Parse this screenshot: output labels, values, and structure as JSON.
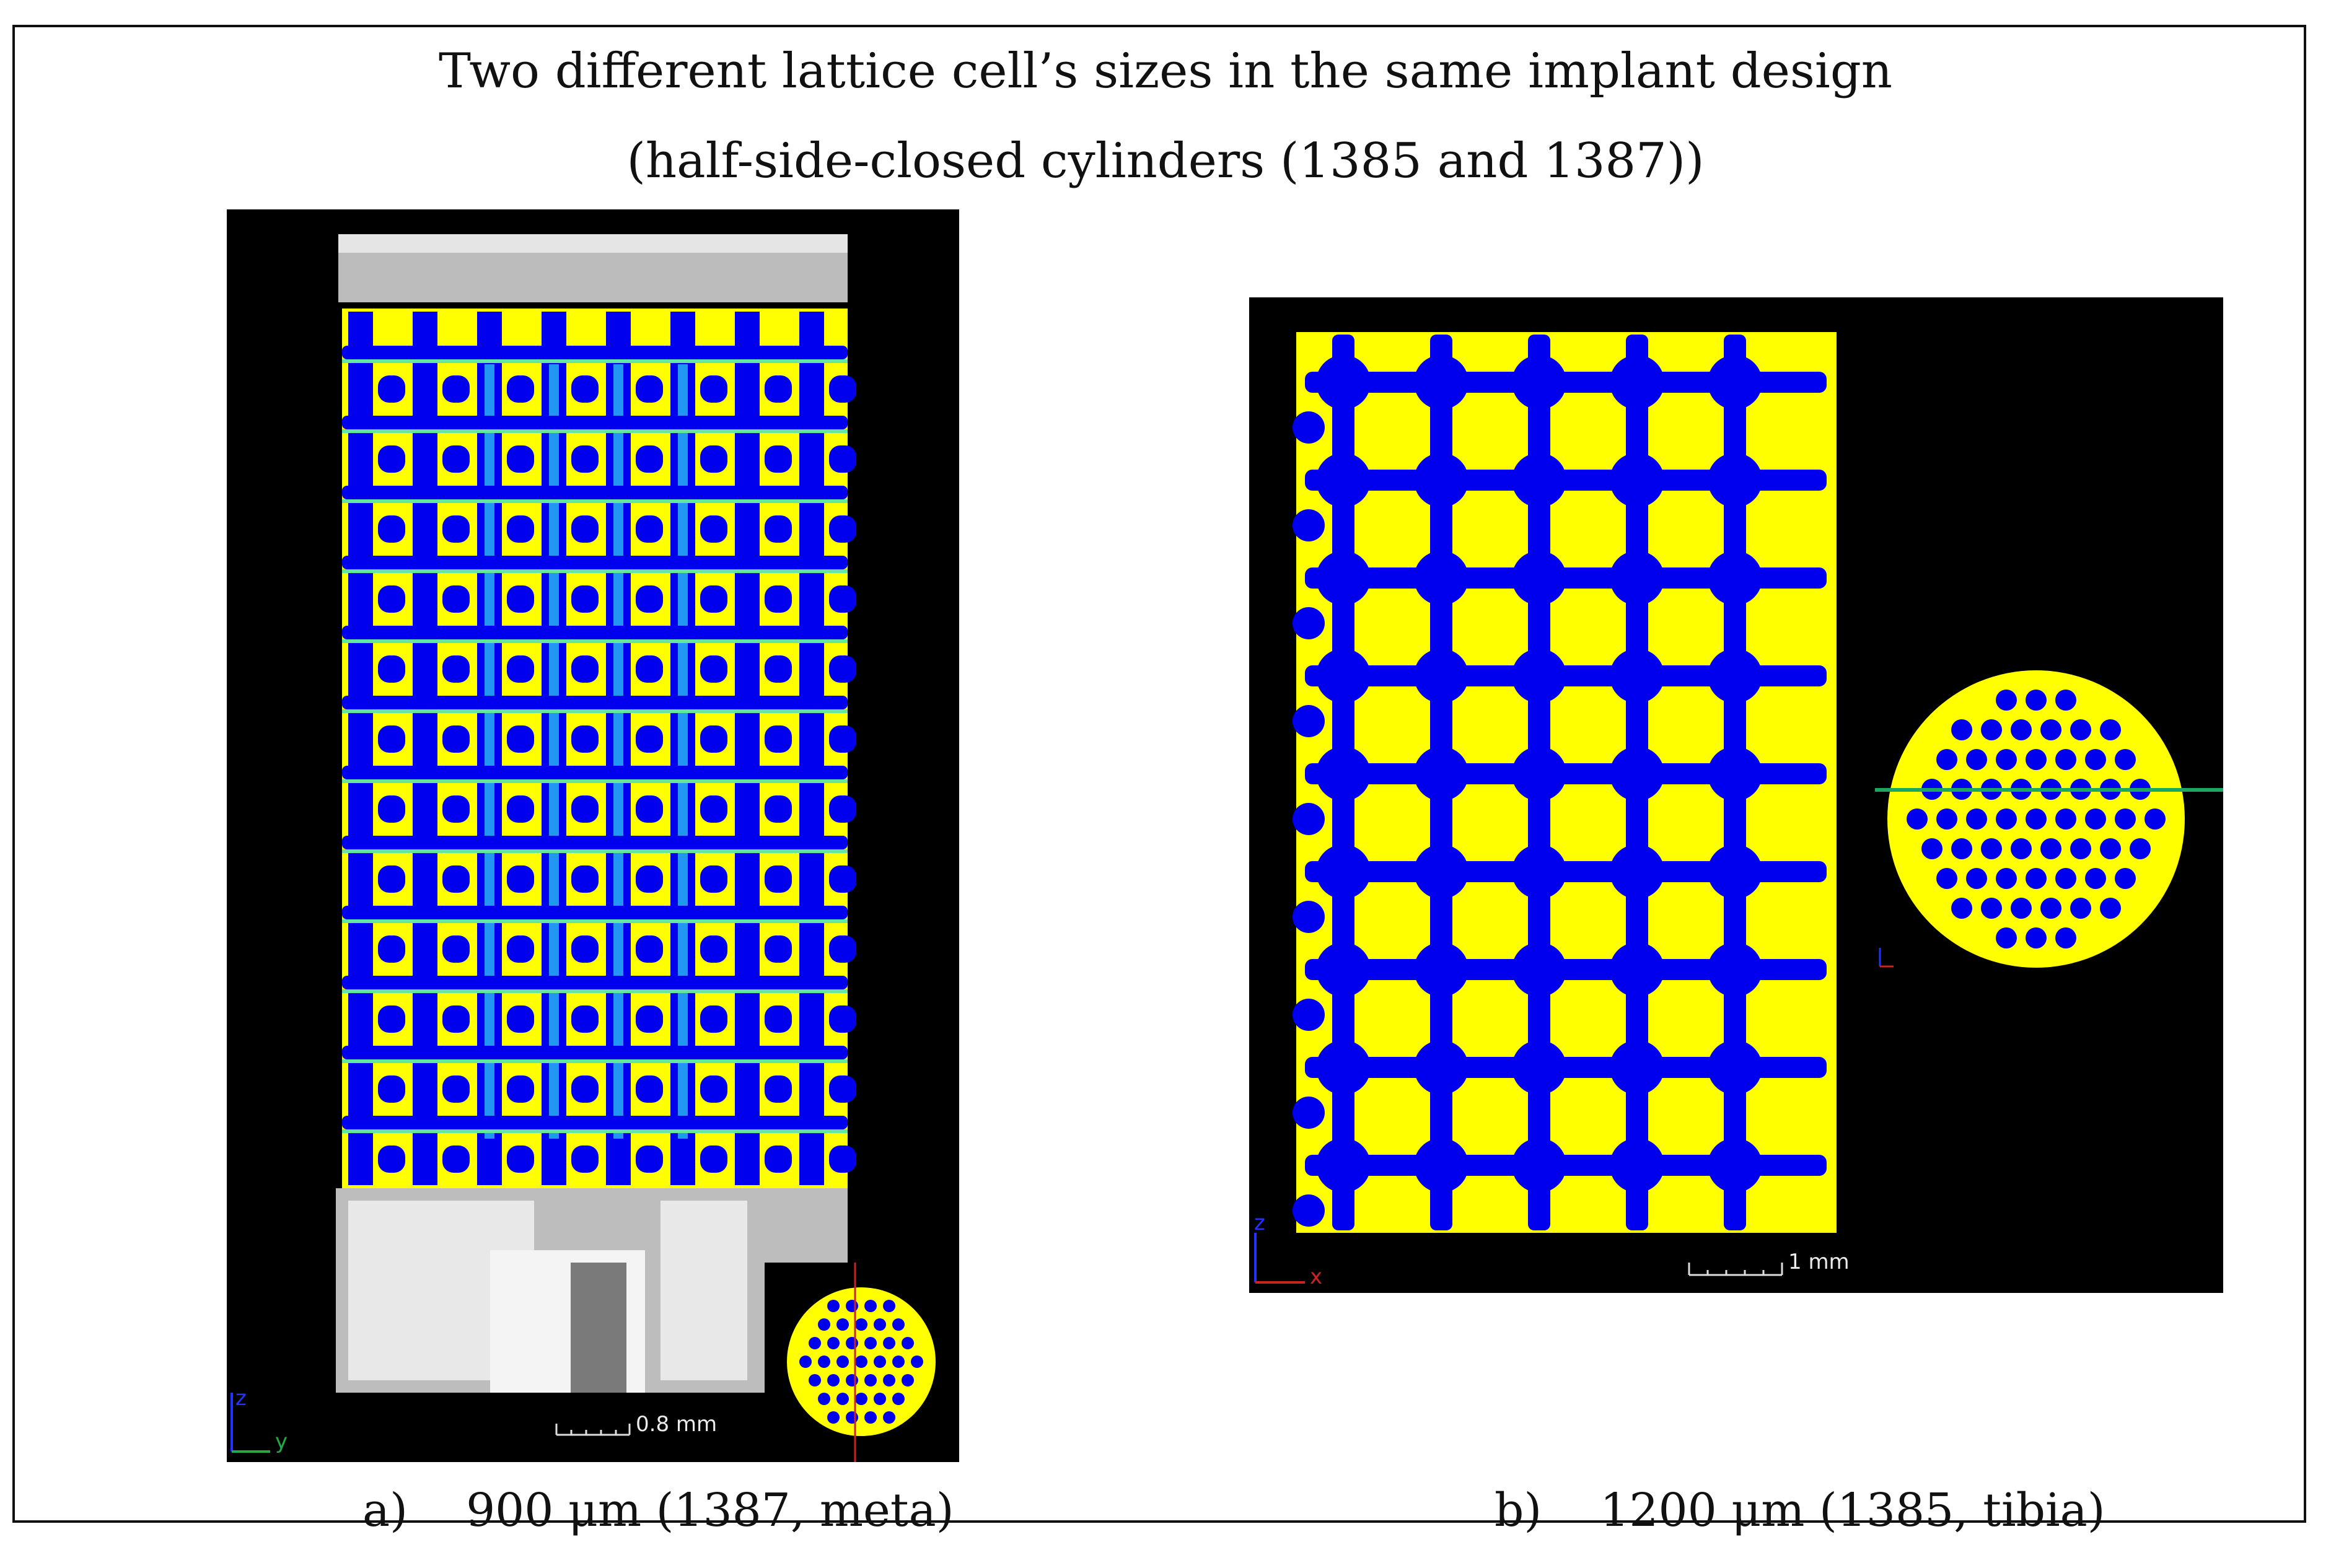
{
  "title_line1": "Two different lattice cell’s sizes in the same implant design",
  "title_line2": "(half-side-closed cylinders (1385 and 1387))",
  "panel_a": {
    "scale": "0.8 mm",
    "axes": {
      "z": "z",
      "y": "y"
    },
    "caption_letter": "a)",
    "caption": "900 μm (1387, meta)"
  },
  "panel_b": {
    "scale": "1 mm",
    "axes": {
      "z": "z",
      "x": "x"
    },
    "caption_letter": "b)",
    "caption": "1200 μm (1385, tibia)"
  },
  "colors": {
    "background": "#000000",
    "implant": "#ffff00",
    "bone_blue": "#0000ee",
    "light_blue": "#2196f3",
    "green": "#64e6a0",
    "grey": "#bcbcbc",
    "marker_line": "#1aa860"
  }
}
